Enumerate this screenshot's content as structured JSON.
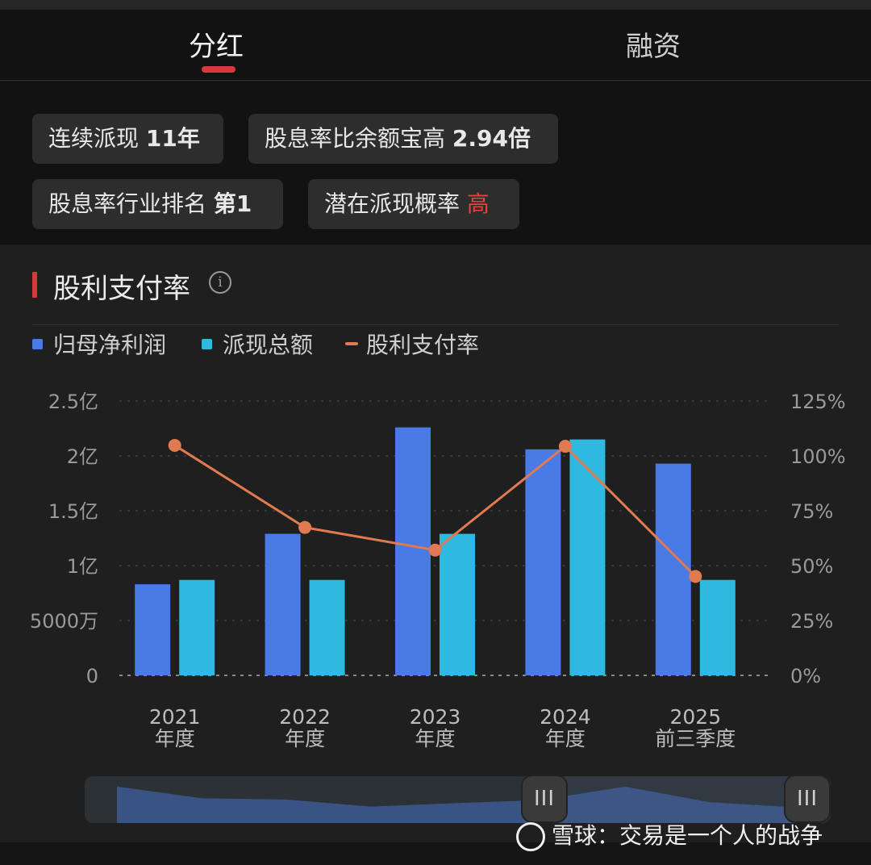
{
  "tabs": [
    {
      "label": "分红",
      "active": true
    },
    {
      "label": "融资",
      "active": false
    }
  ],
  "tags": [
    {
      "prefix": "连续派现 ",
      "value": "11年"
    },
    {
      "prefix": "股息率比余额宝高 ",
      "value": "2.94倍"
    },
    {
      "prefix": "股息率行业排名 ",
      "value": "第1"
    },
    {
      "prefix": "潜在派现概率 ",
      "value": "高"
    }
  ],
  "section": {
    "title": "股利支付率",
    "info_icon": "info-icon"
  },
  "colors": {
    "net_profit": "#4a7ae6",
    "payout_total": "#2fb8e0",
    "payout_ratio": "#e07a50",
    "accent": "#d9393b"
  },
  "legend": [
    {
      "name": "归母净利润",
      "type": "square"
    },
    {
      "name": "派现总额",
      "type": "square"
    },
    {
      "name": "股利支付率",
      "type": "line"
    }
  ],
  "chart_data": {
    "type": "bar",
    "categories": [
      [
        "2021",
        "年度"
      ],
      [
        "2022",
        "年度"
      ],
      [
        "2023",
        "年度"
      ],
      [
        "2024",
        "年度"
      ],
      [
        "2025",
        "前三季度"
      ]
    ],
    "y_left_ticks": [
      "0",
      "5000万",
      "1亿",
      "1.5亿",
      "2亿",
      "2.5亿"
    ],
    "y_right_ticks": [
      "0%",
      "25%",
      "50%",
      "75%",
      "100%",
      "125%"
    ],
    "ylim_left": [
      0,
      2.5
    ],
    "ylim_right": [
      0,
      125
    ],
    "series": [
      {
        "name": "归母净利润",
        "type": "bar",
        "values": [
          0.83,
          1.29,
          2.26,
          2.06,
          1.93
        ]
      },
      {
        "name": "派现总额",
        "type": "bar",
        "values": [
          0.87,
          0.87,
          1.29,
          2.15,
          0.87
        ]
      },
      {
        "name": "股利支付率",
        "type": "line",
        "axis": "right",
        "values": [
          104.8,
          67.4,
          57.1,
          104.4,
          45.1
        ]
      }
    ],
    "grid": true,
    "legend_position": "top-left"
  },
  "slider": {
    "handle_icon": "grip-icon",
    "handle_glyph": "III"
  },
  "watermark": {
    "logo": "xueqiu-logo-icon",
    "text": "雪球：交易是一个人的战争"
  }
}
